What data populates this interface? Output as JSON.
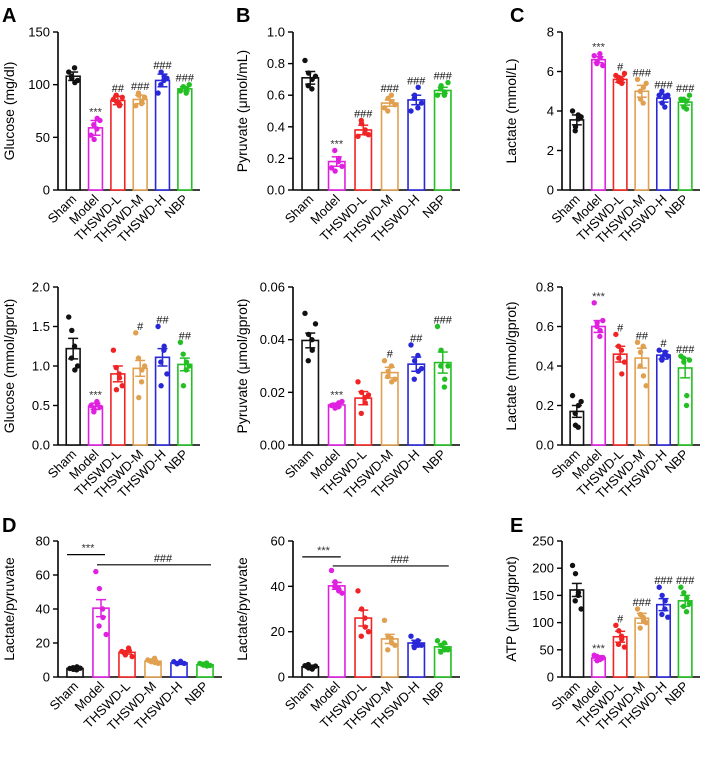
{
  "colors": {
    "Sham": "#111111",
    "Model": "#e020e0",
    "THSWD-L": "#f02424",
    "THSWD-M": "#e0a050",
    "THSWD-H": "#2828d8",
    "NBP": "#22c022",
    "sig_star": "#333333",
    "sig_hash": "#111111"
  },
  "chart_data": [
    {
      "letter": "A",
      "type": "bar",
      "ylabel": "Glucose (mg/dl)",
      "categories": [
        "Sham",
        "Model",
        "THSWD-L",
        "THSWD-M",
        "THSWD-H",
        "NBP"
      ],
      "values": [
        108,
        59,
        85,
        86,
        104,
        96
      ],
      "errors": [
        4,
        7,
        4,
        4,
        6,
        2
      ],
      "ylim": [
        0,
        150
      ],
      "yticks": [
        0,
        50,
        100,
        150
      ],
      "ytick_labels": [
        "0",
        "50",
        "100",
        "150"
      ],
      "points": [
        [
          112,
          106,
          102,
          108,
          116,
          104
        ],
        [
          52,
          48,
          68,
          62,
          58,
          66
        ],
        [
          86,
          84,
          80,
          90,
          82,
          88
        ],
        [
          80,
          90,
          84,
          92,
          82,
          88
        ],
        [
          92,
          112,
          108,
          100,
          104,
          106
        ],
        [
          94,
          98,
          96,
          98,
          92,
          100
        ]
      ],
      "sig": [
        "",
        "***",
        "##",
        "###",
        "###",
        "###"
      ]
    },
    {
      "letter": "B",
      "type": "bar",
      "ylabel": "Pyruvate (μmol/mL)",
      "categories": [
        "Sham",
        "Model",
        "THSWD-L",
        "THSWD-M",
        "THSWD-H",
        "NBP"
      ],
      "values": [
        0.71,
        0.18,
        0.38,
        0.55,
        0.57,
        0.63
      ],
      "errors": [
        0.04,
        0.03,
        0.03,
        0.02,
        0.03,
        0.02
      ],
      "ylim": [
        0,
        1.0
      ],
      "yticks": [
        0,
        0.2,
        0.4,
        0.6,
        0.8,
        1.0
      ],
      "ytick_labels": [
        "0.0",
        "0.2",
        "0.4",
        "0.6",
        "0.8",
        "1.0"
      ],
      "points": [
        [
          0.82,
          0.74,
          0.7,
          0.66,
          0.64,
          0.72
        ],
        [
          0.14,
          0.12,
          0.2,
          0.25,
          0.18,
          0.15
        ],
        [
          0.34,
          0.42,
          0.38,
          0.44,
          0.36,
          0.35
        ],
        [
          0.52,
          0.58,
          0.56,
          0.5,
          0.6,
          0.54
        ],
        [
          0.5,
          0.6,
          0.65,
          0.58,
          0.52,
          0.55
        ],
        [
          0.6,
          0.66,
          0.62,
          0.64,
          0.6,
          0.68
        ]
      ],
      "sig": [
        "",
        "***",
        "###",
        "###",
        "###",
        "###"
      ]
    },
    {
      "letter": "C",
      "type": "bar",
      "ylabel": "Lactate (mmol/L)",
      "categories": [
        "Sham",
        "Model",
        "THSWD-L",
        "THSWD-M",
        "THSWD-H",
        "NBP"
      ],
      "values": [
        3.55,
        6.6,
        5.6,
        5.0,
        4.65,
        4.45
      ],
      "errors": [
        0.25,
        0.15,
        0.15,
        0.3,
        0.2,
        0.15
      ],
      "ylim": [
        0,
        8
      ],
      "yticks": [
        0,
        2,
        4,
        6,
        8
      ],
      "ytick_labels": [
        "0",
        "2",
        "4",
        "6",
        "8"
      ],
      "points": [
        [
          4.0,
          3.2,
          3.6,
          3.0,
          3.8,
          3.7
        ],
        [
          6.8,
          6.5,
          6.7,
          6.4,
          6.9,
          6.3
        ],
        [
          5.8,
          5.5,
          5.4,
          5.7,
          5.6,
          5.9
        ],
        [
          5.6,
          4.6,
          5.2,
          5.0,
          4.4,
          5.4
        ],
        [
          4.8,
          4.4,
          4.7,
          5.0,
          4.2,
          4.8
        ],
        [
          4.6,
          4.2,
          4.5,
          4.6,
          4.1,
          4.8
        ]
      ],
      "sig": [
        "",
        "***",
        "#",
        "###",
        "###",
        "###"
      ]
    },
    {
      "letter": "",
      "type": "bar",
      "ylabel": "Glucose (mmol/gprot)",
      "categories": [
        "Sham",
        "Model",
        "THSWD-L",
        "THSWD-M",
        "THSWD-H",
        "NBP"
      ],
      "values": [
        1.22,
        0.49,
        0.9,
        0.97,
        1.11,
        1.02
      ],
      "errors": [
        0.13,
        0.04,
        0.1,
        0.1,
        0.11,
        0.08
      ],
      "ylim": [
        0,
        2.0
      ],
      "yticks": [
        0,
        0.5,
        1.0,
        1.5,
        2.0
      ],
      "ytick_labels": [
        "0.0",
        "0.5",
        "1.0",
        "1.5",
        "2.0"
      ],
      "points": [
        [
          1.62,
          1.45,
          0.95,
          1.1,
          1.25,
          1.0
        ],
        [
          0.5,
          0.45,
          0.53,
          0.42,
          0.55,
          0.48
        ],
        [
          1.2,
          0.7,
          0.85,
          0.98,
          0.9,
          0.75
        ],
        [
          1.42,
          0.6,
          0.95,
          1.1,
          0.8,
          1.0
        ],
        [
          1.5,
          0.75,
          1.25,
          1.05,
          1.2,
          0.9
        ],
        [
          1.3,
          0.75,
          1.05,
          1.15,
          0.95,
          1.0
        ]
      ],
      "sig": [
        "",
        "***",
        "",
        "#",
        "##",
        "##"
      ]
    },
    {
      "letter": "",
      "type": "bar",
      "ylabel": "Pyruvate (μmol/gprot)",
      "categories": [
        "Sham",
        "Model",
        "THSWD-L",
        "THSWD-M",
        "THSWD-H",
        "NBP"
      ],
      "values": [
        0.0397,
        0.0152,
        0.0178,
        0.0275,
        0.0307,
        0.0313
      ],
      "errors": [
        0.0028,
        0.0007,
        0.0025,
        0.002,
        0.0027,
        0.004
      ],
      "ylim": [
        0,
        0.06
      ],
      "yticks": [
        0,
        0.02,
        0.04,
        0.06
      ],
      "ytick_labels": [
        "0.00",
        "0.02",
        "0.04",
        "0.06"
      ],
      "points": [
        [
          0.05,
          0.042,
          0.036,
          0.032,
          0.04,
          0.046
        ],
        [
          0.015,
          0.014,
          0.016,
          0.015,
          0.0145,
          0.0165
        ],
        [
          0.024,
          0.02,
          0.016,
          0.012,
          0.018,
          0.019
        ],
        [
          0.032,
          0.028,
          0.024,
          0.026,
          0.03,
          0.025
        ],
        [
          0.038,
          0.032,
          0.028,
          0.025,
          0.034,
          0.029
        ],
        [
          0.045,
          0.036,
          0.025,
          0.03,
          0.022,
          0.03
        ]
      ],
      "sig": [
        "",
        "***",
        "",
        "#",
        "##",
        "###"
      ]
    },
    {
      "letter": "",
      "type": "bar",
      "ylabel": "Lactate (mmol/gprot)",
      "categories": [
        "Sham",
        "Model",
        "THSWD-L",
        "THSWD-M",
        "THSWD-H",
        "NBP"
      ],
      "values": [
        0.17,
        0.6,
        0.46,
        0.44,
        0.455,
        0.39
      ],
      "errors": [
        0.03,
        0.03,
        0.04,
        0.05,
        0.02,
        0.05
      ],
      "ylim": [
        0,
        0.8
      ],
      "yticks": [
        0,
        0.2,
        0.4,
        0.6,
        0.8
      ],
      "ytick_labels": [
        "0.0",
        "0.2",
        "0.4",
        "0.6",
        "0.8"
      ],
      "points": [
        [
          0.25,
          0.1,
          0.2,
          0.16,
          0.09,
          0.22
        ],
        [
          0.72,
          0.62,
          0.58,
          0.6,
          0.55,
          0.63
        ],
        [
          0.56,
          0.44,
          0.36,
          0.5,
          0.48,
          0.42
        ],
        [
          0.52,
          0.47,
          0.35,
          0.4,
          0.5,
          0.3
        ],
        [
          0.48,
          0.44,
          0.47,
          0.43,
          0.46,
          0.45
        ],
        [
          0.45,
          0.42,
          0.25,
          0.44,
          0.2,
          0.43
        ]
      ],
      "sig": [
        "",
        "***",
        "#",
        "##",
        "#",
        "###"
      ]
    },
    {
      "letter": "D",
      "type": "bar",
      "ylabel": "Lactate/pyruvate",
      "categories": [
        "Sham",
        "Model",
        "THSWD-L",
        "THSWD-M",
        "THSWD-H",
        "NBP"
      ],
      "values": [
        5,
        40.5,
        14.5,
        9.3,
        8.3,
        7.2
      ],
      "errors": [
        0.5,
        5,
        1,
        0.7,
        0.4,
        0.5
      ],
      "ylim": [
        0,
        80
      ],
      "yticks": [
        0,
        20,
        40,
        60,
        80
      ],
      "ytick_labels": [
        "0",
        "20",
        "40",
        "60",
        "80"
      ],
      "points": [
        [
          5,
          4.5,
          6,
          5.5,
          4.2,
          5.2
        ],
        [
          62,
          52,
          35,
          30,
          40,
          25
        ],
        [
          15,
          13,
          16,
          14,
          17,
          12
        ],
        [
          10,
          9,
          8.5,
          9.5,
          11,
          8
        ],
        [
          9,
          8,
          8.5,
          7.8,
          9.2,
          8
        ],
        [
          8,
          7,
          6.5,
          7.5,
          8.2,
          6.8
        ]
      ],
      "sig": [
        "",
        "",
        "",
        "",
        "",
        ""
      ],
      "bracket1_label": "***",
      "bracket2_label": "###"
    },
    {
      "letter": "",
      "type": "bar",
      "ylabel": "Lactate/pyruvate",
      "categories": [
        "Sham",
        "Model",
        "THSWD-L",
        "THSWD-M",
        "THSWD-H",
        "NBP"
      ],
      "values": [
        4.5,
        40.2,
        26,
        16.8,
        15,
        13.3
      ],
      "errors": [
        0.7,
        1.5,
        3.5,
        2,
        1.2,
        1.2
      ],
      "ylim": [
        0,
        60
      ],
      "yticks": [
        0,
        20,
        40,
        60
      ],
      "ytick_labels": [
        "0",
        "20",
        "40",
        "60"
      ],
      "points": [
        [
          5,
          4,
          3.5,
          5.5,
          4.2,
          4.8
        ],
        [
          47,
          42,
          38,
          40,
          39,
          37
        ],
        [
          38,
          30,
          22,
          18,
          26,
          20
        ],
        [
          25,
          18,
          15,
          12,
          17,
          14
        ],
        [
          18,
          15,
          14,
          13,
          16,
          14
        ],
        [
          16,
          14,
          12,
          11,
          15,
          12
        ]
      ],
      "sig": [
        "",
        "",
        "",
        "",
        "",
        ""
      ],
      "bracket1_label": "***",
      "bracket2_label": "###"
    },
    {
      "letter": "E",
      "type": "bar",
      "ylabel": "ATP (μmol/gprot)",
      "categories": [
        "Sham",
        "Model",
        "THSWD-L",
        "THSWD-M",
        "THSWD-H",
        "NBP"
      ],
      "values": [
        160,
        35,
        74,
        108,
        133,
        140
      ],
      "errors": [
        12,
        4,
        10,
        9,
        11,
        10
      ],
      "ylim": [
        0,
        250
      ],
      "yticks": [
        0,
        50,
        100,
        150,
        200,
        250
      ],
      "ytick_labels": [
        "0",
        "50",
        "100",
        "150",
        "200",
        "250"
      ],
      "points": [
        [
          205,
          190,
          155,
          140,
          150,
          125
        ],
        [
          40,
          30,
          35,
          38,
          32,
          36
        ],
        [
          95,
          85,
          70,
          60,
          75,
          55
        ],
        [
          125,
          115,
          105,
          90,
          110,
          100
        ],
        [
          165,
          150,
          140,
          115,
          125,
          110
        ],
        [
          165,
          155,
          145,
          130,
          120,
          135
        ]
      ],
      "sig": [
        "",
        "***",
        "#",
        "###",
        "###",
        "###"
      ]
    }
  ]
}
